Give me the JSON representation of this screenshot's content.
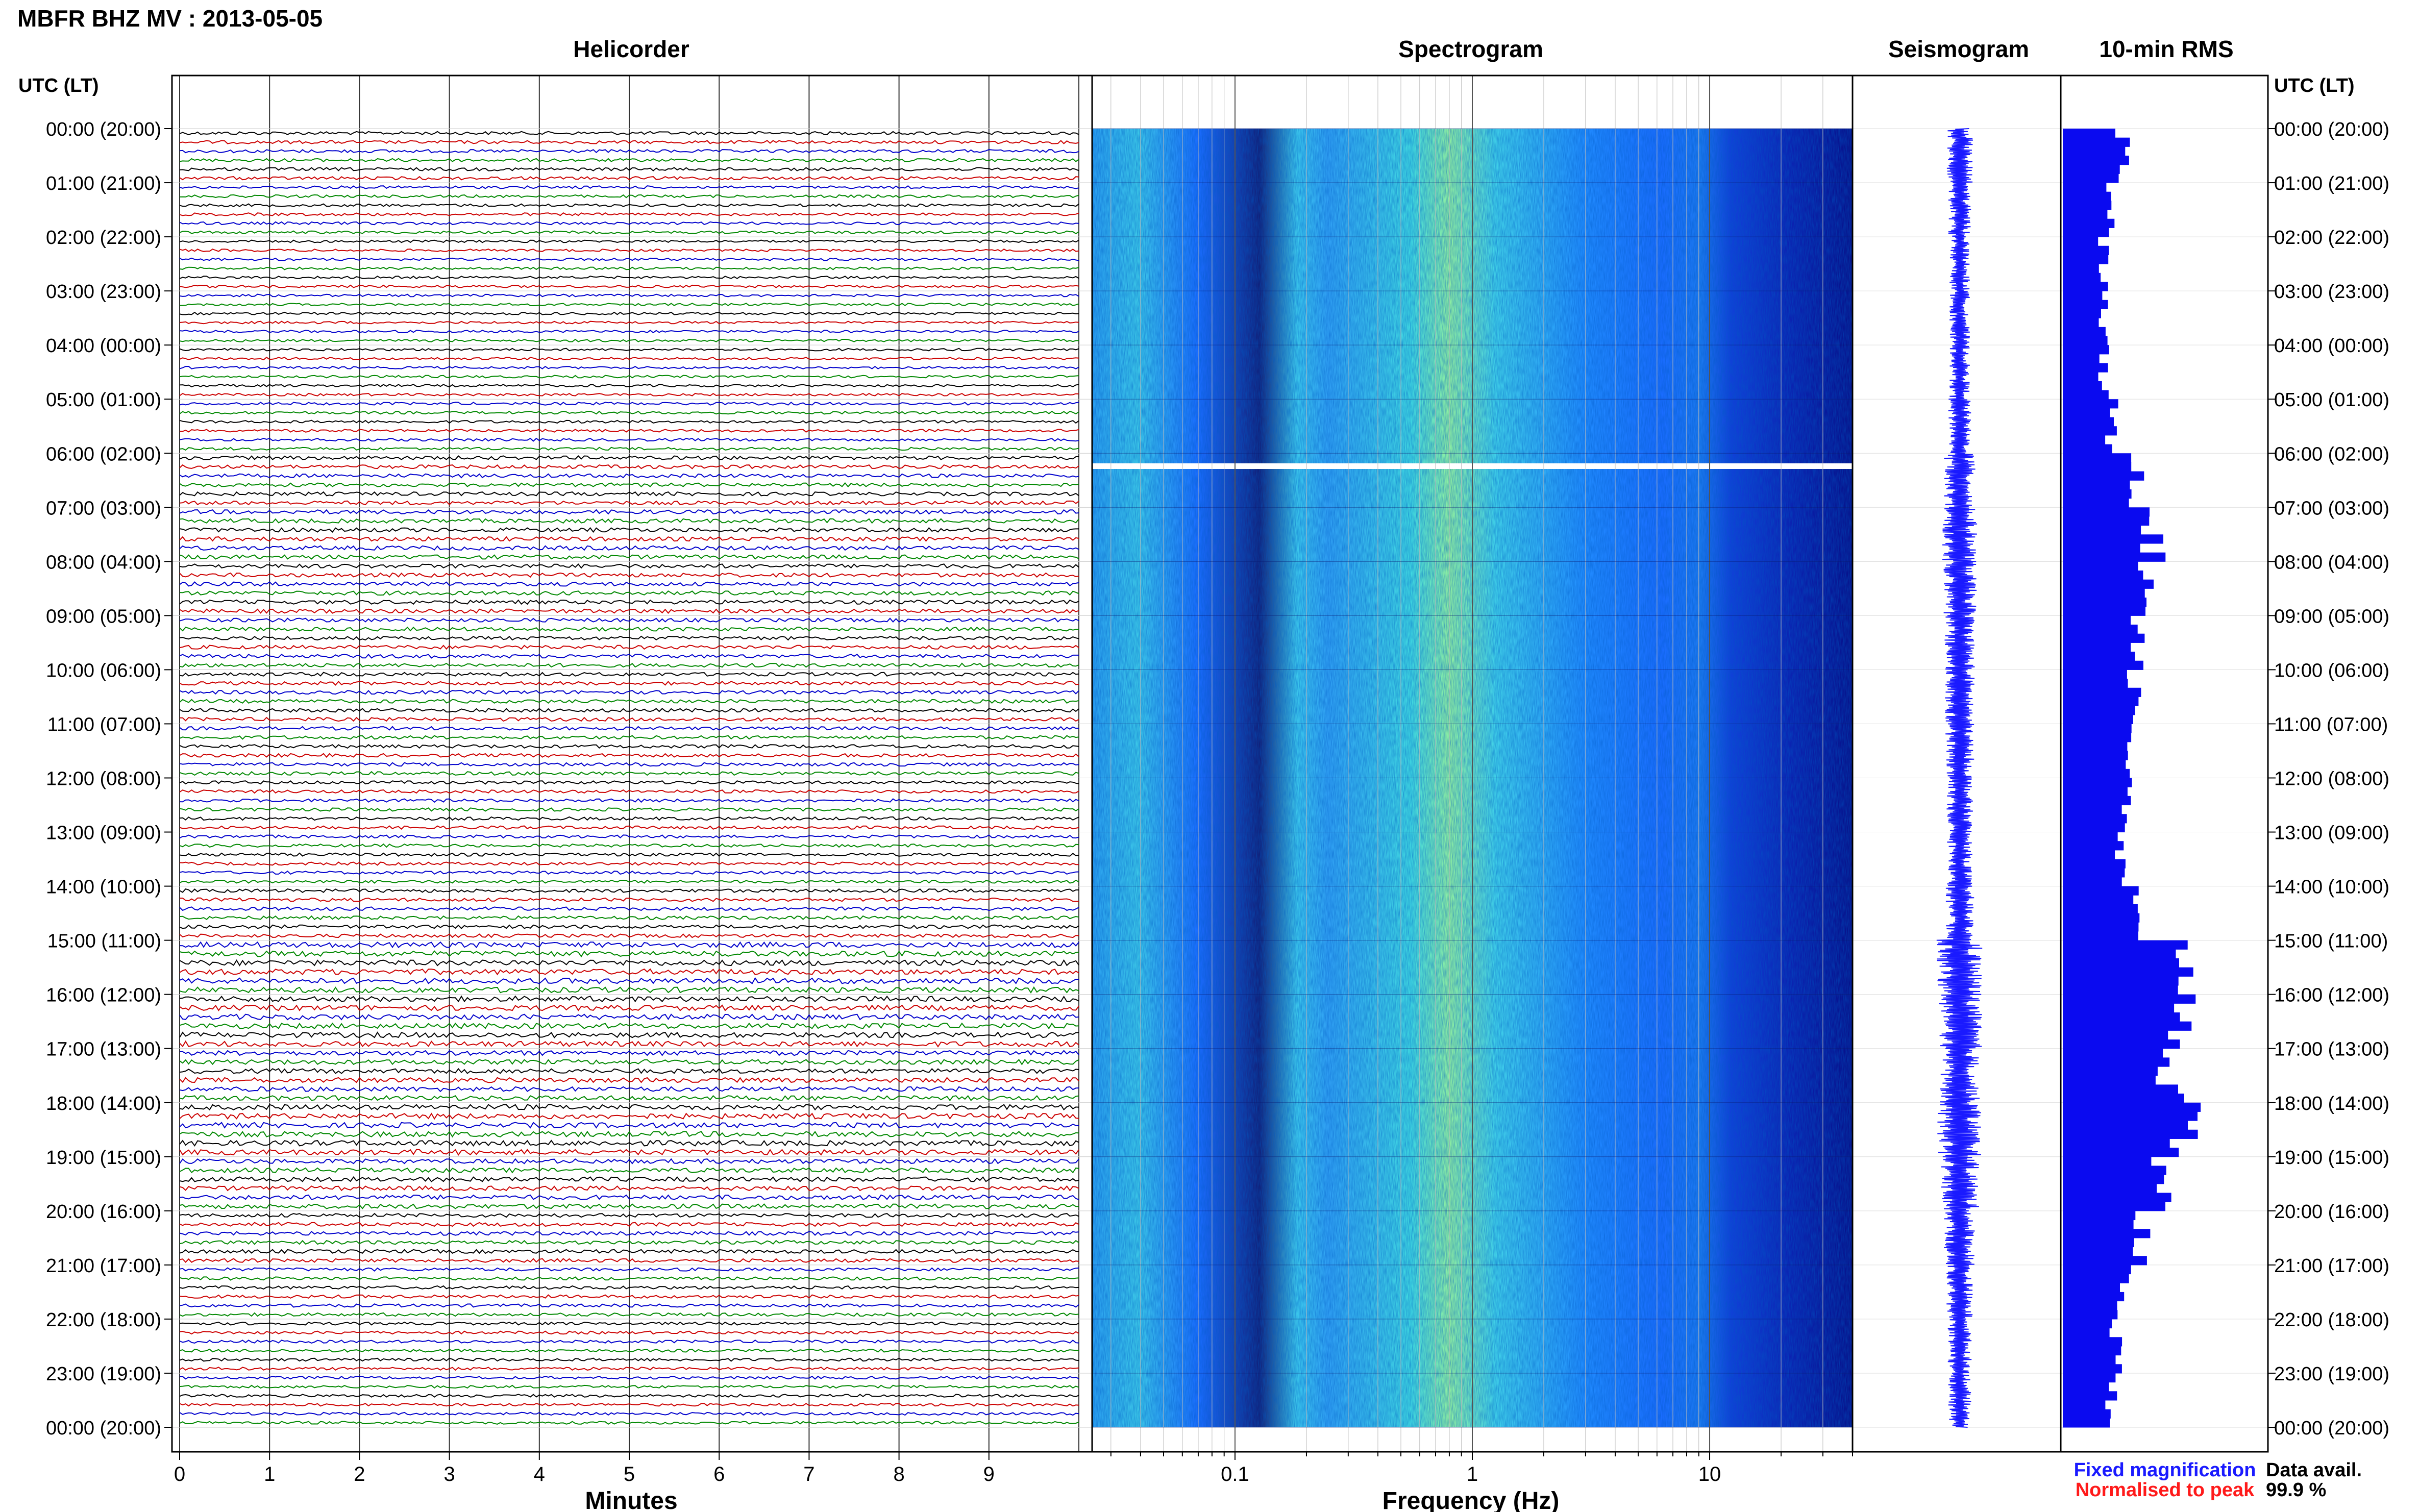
{
  "header": {
    "title": "MBFR BHZ MV : 2013-05-05"
  },
  "panels": {
    "helicorder_title": "Helicorder",
    "spectrogram_title": "Spectrogram",
    "seismogram_title": "Seismogram",
    "rms_title": "10-min RMS"
  },
  "axes": {
    "left_time_label": "UTC (LT)",
    "right_time_label": "UTC (LT)",
    "minutes_label": "Minutes",
    "frequency_label": "Frequency (Hz)"
  },
  "legend": {
    "fixed_magnification": "Fixed magnification",
    "normalised_to_peak": "Normalised to peak",
    "fixed_color": "#1a1aff",
    "normalised_color": "#ff1a1a"
  },
  "availability": {
    "label": "Data avail.",
    "value": "99.9 %"
  },
  "colors": {
    "trace_cycle": [
      "#000000",
      "#cc0000",
      "#0000cc",
      "#008800"
    ],
    "seismogram": "#1a1aff",
    "rms_bar": "#0a0af0",
    "spectrogram_low": "#0818a0",
    "spectrogram_mid": "#1a6cff",
    "spectrogram_high": "#40e0e8",
    "spectrogram_peak": "#a0f080"
  },
  "chart_data": [
    {
      "type": "line",
      "name": "Helicorder",
      "xlabel": "Minutes",
      "x_ticks": [
        "0",
        "1",
        "2",
        "3",
        "4",
        "5",
        "6",
        "7",
        "8",
        "9"
      ],
      "xlim": [
        0,
        10
      ],
      "traces_per_hour": 6,
      "hours": 24,
      "time_ticks_utc": [
        "00:00 (20:00)",
        "01:00 (21:00)",
        "02:00 (22:00)",
        "03:00 (23:00)",
        "04:00 (00:00)",
        "05:00 (01:00)",
        "06:00 (02:00)",
        "07:00 (03:00)",
        "08:00 (04:00)",
        "09:00 (05:00)",
        "10:00 (06:00)",
        "11:00 (07:00)",
        "12:00 (08:00)",
        "13:00 (09:00)",
        "14:00 (10:00)",
        "15:00 (11:00)",
        "16:00 (12:00)",
        "17:00 (13:00)",
        "18:00 (14:00)",
        "19:00 (15:00)",
        "20:00 (16:00)",
        "21:00 (17:00)",
        "22:00 (18:00)",
        "23:00 (19:00)",
        "00:00 (20:00)"
      ]
    },
    {
      "type": "heatmap",
      "name": "Spectrogram",
      "xlabel": "Frequency (Hz)",
      "x_scale": "log",
      "x_ticks": [
        "0.1",
        "1",
        "10"
      ],
      "xlim": [
        0.025,
        40
      ],
      "data_gap_utc": "06:15"
    },
    {
      "type": "line",
      "name": "Seismogram"
    },
    {
      "type": "bar",
      "name": "10-min RMS",
      "orientation": "horizontal",
      "hourly_relative_rms": [
        0.3,
        0.24,
        0.2,
        0.2,
        0.2,
        0.24,
        0.38,
        0.44,
        0.42,
        0.38,
        0.36,
        0.34,
        0.3,
        0.28,
        0.34,
        0.62,
        0.6,
        0.52,
        0.6,
        0.5,
        0.38,
        0.3,
        0.26,
        0.24
      ]
    }
  ]
}
